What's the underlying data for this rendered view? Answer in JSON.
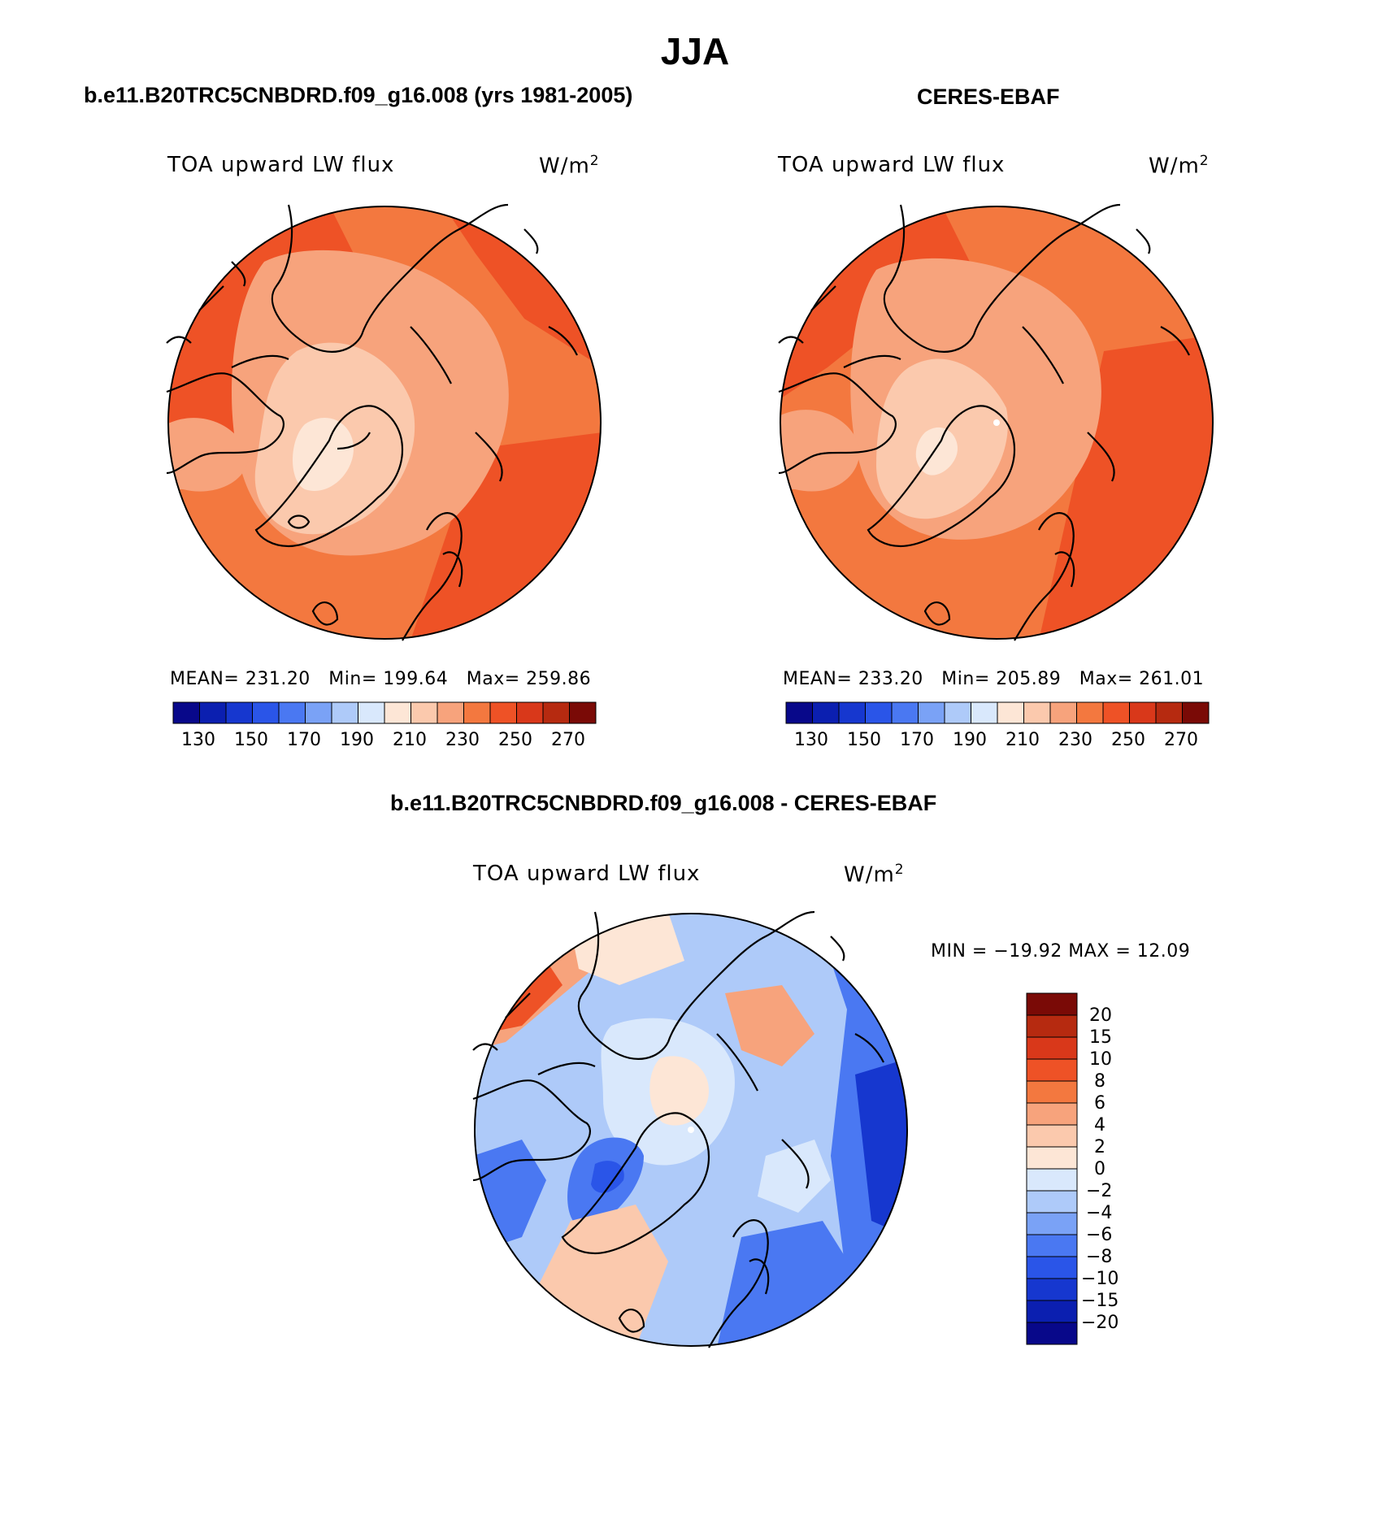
{
  "title": "JJA",
  "panels": [
    {
      "case_title": "b.e11.B20TRC5CNBDRD.f09_g16.008 (yrs 1981-2005)",
      "variable": "TOA upward LW flux",
      "units_base": "W/m",
      "units_sup": "2",
      "stats": {
        "mean_label": "MEAN=",
        "mean": "231.20",
        "min_label": "Min=",
        "min": "199.64",
        "max_label": "Max=",
        "max": "259.86"
      },
      "colorbar_labels": [
        "130",
        "150",
        "170",
        "190",
        "210",
        "230",
        "250",
        "270"
      ]
    },
    {
      "case_title": "CERES-EBAF",
      "variable": "TOA upward LW flux",
      "units_base": "W/m",
      "units_sup": "2",
      "stats": {
        "mean_label": "MEAN=",
        "mean": "233.20",
        "min_label": "Min=",
        "min": "205.89",
        "max_label": "Max=",
        "max": "261.01"
      },
      "colorbar_labels": [
        "130",
        "150",
        "170",
        "190",
        "210",
        "230",
        "250",
        "270"
      ]
    }
  ],
  "diff_panel": {
    "case_title": "b.e11.B20TRC5CNBDRD.f09_g16.008 - CERES-EBAF",
    "variable": "TOA upward LW flux",
    "units_base": "W/m",
    "units_sup": "2",
    "minmax": "MIN = −19.92 MAX =   12.09",
    "colorbar_labels": [
      "20",
      "15",
      "10",
      "8",
      "6",
      "4",
      "2",
      "0",
      "−2",
      "−4",
      "−6",
      "−8",
      "−10",
      "−15",
      "−20"
    ]
  },
  "colors": {
    "abs_scale": [
      "#08088a",
      "#0b1fb0",
      "#1637cf",
      "#2a55e8",
      "#4a78f2",
      "#7aa2f6",
      "#aecaf9",
      "#d9e8fc",
      "#fde6d6",
      "#fbc9ad",
      "#f7a37c",
      "#f3783f",
      "#ee5226",
      "#d9381a",
      "#b62a10",
      "#7a0a06"
    ],
    "diff_scale": [
      "#7a0a06",
      "#b62a10",
      "#d9381a",
      "#ee5226",
      "#f3783f",
      "#f7a37c",
      "#fbc9ad",
      "#fde6d6",
      "#d9e8fc",
      "#aecaf9",
      "#7aa2f6",
      "#4a78f2",
      "#2a55e8",
      "#1637cf",
      "#0b1fb0",
      "#08088a"
    ]
  }
}
